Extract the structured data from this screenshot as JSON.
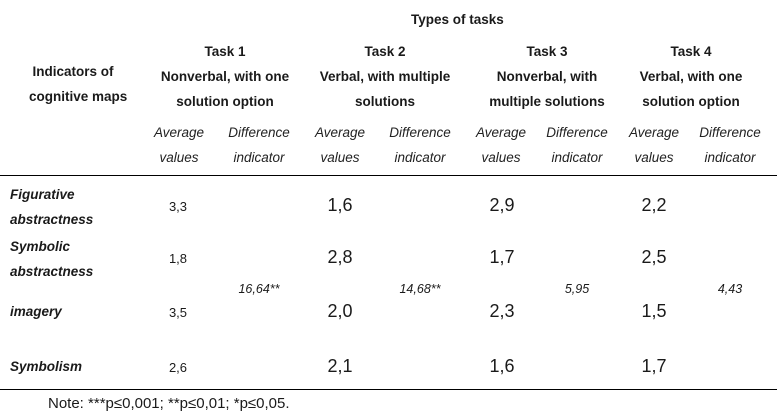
{
  "table": {
    "types_header": "Types of tasks",
    "indicators_header": [
      "Indicators of",
      "cognitive maps"
    ],
    "tasks": [
      {
        "title": "Task 1",
        "desc": [
          "Nonverbal, with one",
          "solution option"
        ]
      },
      {
        "title": "Task 2",
        "desc": [
          "Verbal, with multiple",
          "solutions"
        ]
      },
      {
        "title": "Task 3",
        "desc": [
          "Nonverbal, with",
          "multiple solutions"
        ]
      },
      {
        "title": "Task 4",
        "desc": [
          "Verbal, with one",
          "solution option"
        ]
      }
    ],
    "sub_avg": [
      "Average",
      "values"
    ],
    "sub_diff": [
      "Difference",
      "indicator"
    ],
    "rows": [
      {
        "label": [
          "Figurative",
          "abstractness"
        ],
        "values": [
          "3,3",
          "1,6",
          "2,9",
          "2,2"
        ]
      },
      {
        "label": [
          "Symbolic",
          "abstractness"
        ],
        "values": [
          "1,8",
          "2,8",
          "1,7",
          "2,5"
        ]
      },
      {
        "label": [
          "imagery"
        ],
        "values": [
          "3,5",
          "2,0",
          "2,3",
          "1,5"
        ]
      },
      {
        "label": [
          "Symbolism"
        ],
        "values": [
          "2,6",
          "2,1",
          "1,6",
          "1,7"
        ]
      }
    ],
    "differences": [
      "16,64**",
      "14,68**",
      "5,95",
      "4,43"
    ]
  },
  "note": "Note: ***p≤0,001; **p≤0,01; *p≤0,05."
}
